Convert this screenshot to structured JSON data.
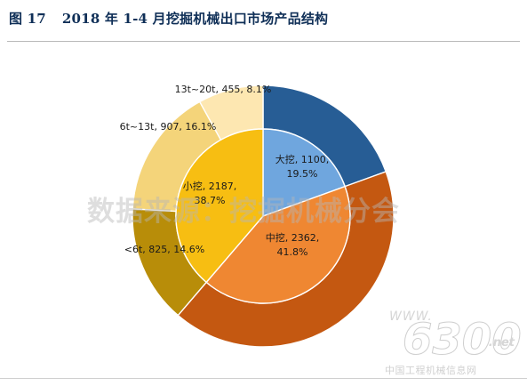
{
  "header": {
    "figure_label": "图 17",
    "title": "2018 年 1-4 月挖掘机械出口市场产品结构"
  },
  "watermark": {
    "text": "数据来源：挖掘机械分会"
  },
  "brand": {
    "www": "WWW.",
    "number": "6300",
    "net": ".net",
    "cn": "中国工程机械信息网"
  },
  "chart_data": {
    "type": "nested-pie",
    "inner_ring": [
      {
        "label": "大挖, 1100,\n19.5%",
        "value": 1100,
        "percent": 19.5,
        "color": "#6fa6de"
      },
      {
        "label": "中挖, 2362,\n41.8%",
        "value": 2362,
        "percent": 41.8,
        "color": "#ef8732"
      },
      {
        "label": "小挖, 2187,\n38.7%",
        "value": 2187,
        "percent": 38.7,
        "color": "#f7be12"
      }
    ],
    "outer_ring": [
      {
        "label": "",
        "value": 1100,
        "percent": 19.5,
        "color": "#275d95"
      },
      {
        "label": "",
        "value": 2362,
        "percent": 41.8,
        "color": "#c45811"
      },
      {
        "label": "<6t, 825, 14.6%",
        "value": 825,
        "percent": 14.6,
        "color": "#b88d09"
      },
      {
        "label": "6t~13t, 907, 16.1%",
        "value": 907,
        "percent": 16.1,
        "color": "#f4d47a"
      },
      {
        "label": "13t~20t, 455, 8.1%",
        "value": 455,
        "percent": 8.1,
        "color": "#fde7b1"
      }
    ]
  }
}
